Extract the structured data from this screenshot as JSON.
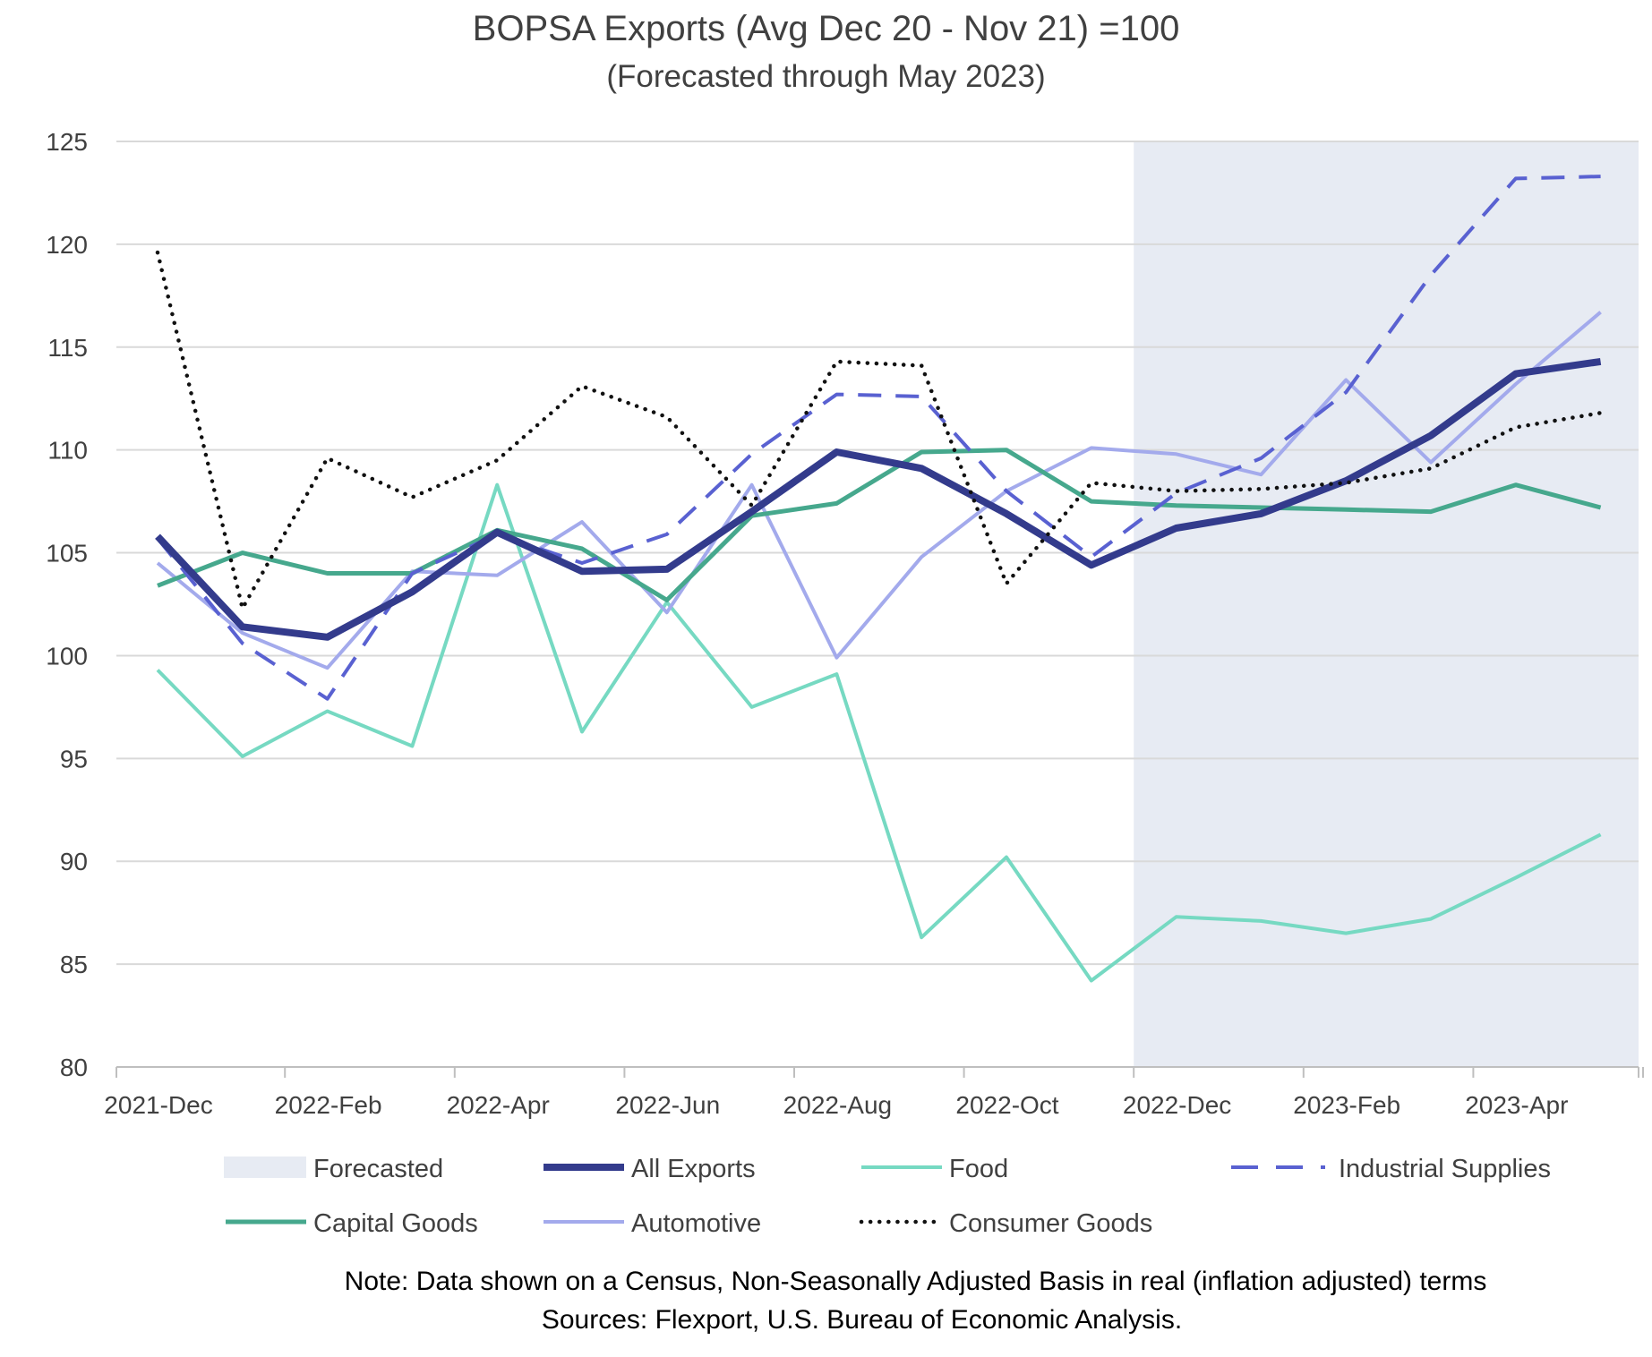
{
  "chart_data": {
    "type": "line",
    "title": "BOPSA Exports (Avg Dec 20 - Nov 21) =100",
    "subtitle": "(Forecasted through May 2023)",
    "ylim": [
      80,
      125
    ],
    "yticks": [
      80,
      85,
      90,
      95,
      100,
      105,
      110,
      115,
      120,
      125
    ],
    "x_tick_labels": [
      "2021-Dec",
      "2022-Feb",
      "2022-Apr",
      "2022-Jun",
      "2022-Aug",
      "2022-Oct",
      "2022-Dec",
      "2023-Feb",
      "2023-Apr"
    ],
    "x": [
      "2021-Dec",
      "2022-Jan",
      "2022-Feb",
      "2022-Mar",
      "2022-Apr",
      "2022-May",
      "2022-Jun",
      "2022-Jul",
      "2022-Aug",
      "2022-Sep",
      "2022-Oct",
      "2022-Nov",
      "2022-Dec",
      "2023-Jan",
      "2023-Feb",
      "2023-Mar",
      "2023-Apr",
      "2023-May"
    ],
    "forecast_band": {
      "label": "Forecasted",
      "start": "2022-Dec",
      "end": "2023-May",
      "color": "#e7ebf3"
    },
    "series": [
      {
        "name": "All Exports",
        "color": "#333b8c",
        "style": "solid",
        "width": 8,
        "values": [
          105.8,
          101.4,
          100.9,
          103.1,
          106.0,
          104.1,
          104.2,
          107.0,
          109.9,
          109.1,
          106.9,
          104.4,
          106.2,
          106.9,
          108.5,
          110.7,
          113.7,
          114.3
        ]
      },
      {
        "name": "Food",
        "color": "#76d9c2",
        "style": "solid",
        "width": 4,
        "values": [
          99.3,
          95.1,
          97.3,
          95.6,
          108.3,
          96.3,
          102.6,
          97.5,
          99.1,
          86.3,
          90.2,
          84.2,
          87.3,
          87.1,
          86.5,
          87.2,
          89.2,
          91.3
        ]
      },
      {
        "name": "Industrial Supplies",
        "color": "#5961d1",
        "style": "dashed",
        "width": 4,
        "values": [
          105.7,
          100.6,
          97.9,
          104.0,
          105.9,
          104.5,
          105.9,
          109.8,
          112.7,
          112.6,
          108.0,
          104.8,
          107.9,
          109.6,
          112.8,
          118.5,
          123.2,
          123.3
        ]
      },
      {
        "name": "Capital Goods",
        "color": "#46a88d",
        "style": "solid",
        "width": 5,
        "values": [
          103.4,
          105.0,
          104.0,
          104.0,
          106.1,
          105.2,
          102.7,
          106.8,
          107.4,
          109.9,
          110.0,
          107.5,
          107.3,
          107.2,
          107.1,
          107.0,
          108.3,
          107.2
        ]
      },
      {
        "name": "Automotive",
        "color": "#a3aaec",
        "style": "solid",
        "width": 4,
        "values": [
          104.5,
          101.1,
          99.4,
          104.1,
          103.9,
          106.5,
          102.1,
          108.3,
          99.9,
          104.8,
          108.0,
          110.1,
          109.8,
          108.8,
          113.4,
          109.4,
          113.2,
          116.7
        ]
      },
      {
        "name": "Consumer Goods",
        "color": "#111111",
        "style": "dotted",
        "width": 4.5,
        "values": [
          119.6,
          102.3,
          109.6,
          107.7,
          109.5,
          113.1,
          111.6,
          107.3,
          114.3,
          114.1,
          103.5,
          108.4,
          108.0,
          108.1,
          108.4,
          109.1,
          111.1,
          111.8
        ]
      }
    ],
    "legend_order": [
      "Forecasted",
      "All Exports",
      "Food",
      "Industrial Supplies",
      "Capital Goods",
      "Automotive",
      "Consumer Goods"
    ],
    "legend_position": "bottom",
    "grid": true
  },
  "notes": {
    "line1": "Note: Data shown on a Census, Non-Seasonally Adjusted Basis in real (inflation adjusted) terms",
    "line2": "Sources: Flexport, U.S. Bureau of Economic Analysis."
  }
}
